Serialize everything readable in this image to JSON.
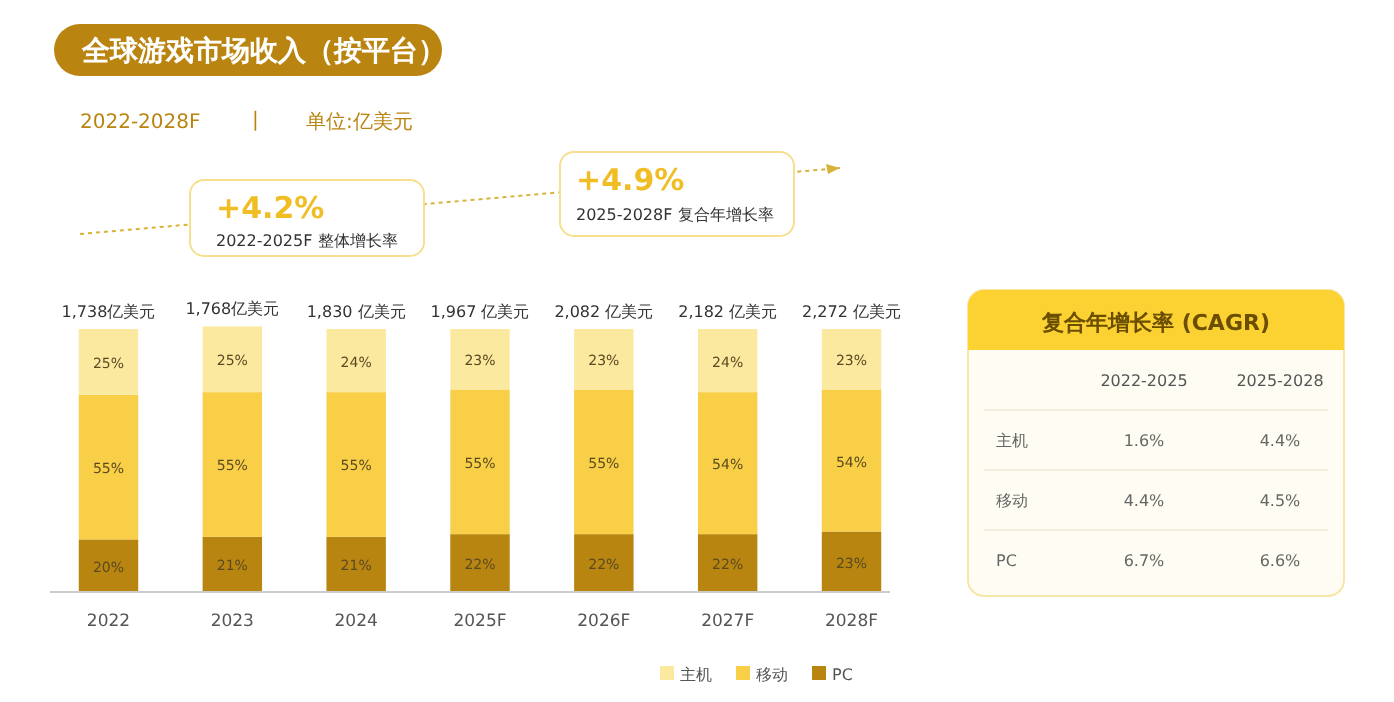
{
  "chart_data": [
    {
      "type": "bar",
      "title": "全球游戏市场收入（按平台）",
      "subtitle": "2022-2028F",
      "stacked": true,
      "categories": [
        "2022",
        "2023",
        "2024",
        "2025F",
        "2026F",
        "2027F",
        "2028F"
      ],
      "tick_labels": "x",
      "legend": "bottom",
      "series": [
        {
          "name": "PC",
          "color": "#b98511",
          "values": [
            20,
            21,
            21,
            22,
            22,
            22,
            23
          ],
          "value_labels": [
            "20%",
            "21%",
            "21%",
            "22%",
            "22%",
            "22%",
            "23%"
          ]
        },
        {
          "name": "移动",
          "color": "#f9cf48",
          "values": [
            55,
            55,
            55,
            55,
            55,
            54,
            54
          ],
          "value_labels": [
            "55%",
            "55%",
            "55%",
            "55%",
            "55%",
            "54%",
            "54%"
          ]
        },
        {
          "name": "主机",
          "color": "#fbe9a0",
          "values": [
            25,
            25,
            24,
            23,
            23,
            24,
            23
          ],
          "value_labels": [
            "25%",
            "25%",
            "24%",
            "23%",
            "23%",
            "24%",
            "23%"
          ]
        }
      ],
      "annotations": [
        "|",
        "单位:亿美元",
        "+4.2%",
        "2022-2025F 整体增长率",
        "+4.9%",
        "2025-2028F 复合年增长率",
        "1,738亿美元",
        "1,768亿美元",
        "1,830 亿美元",
        "1,967 亿美元",
        "2,082 亿美元",
        "2,182 亿美元",
        "2,272 亿美元"
      ]
    },
    {
      "type": "other",
      "title": "复合年增长率 (CAGR)",
      "categories": [
        "主机",
        "移动",
        "PC"
      ],
      "series": [
        {
          "name": "2022-2025",
          "values": [
            1.6,
            4.4,
            6.7
          ],
          "value_labels": [
            "1.6%",
            "4.4%",
            "6.7%"
          ]
        },
        {
          "name": "2025-2028",
          "values": [
            4.4,
            4.5,
            6.6
          ],
          "value_labels": [
            "4.4%",
            "4.5%",
            "6.6%"
          ]
        }
      ]
    }
  ]
}
